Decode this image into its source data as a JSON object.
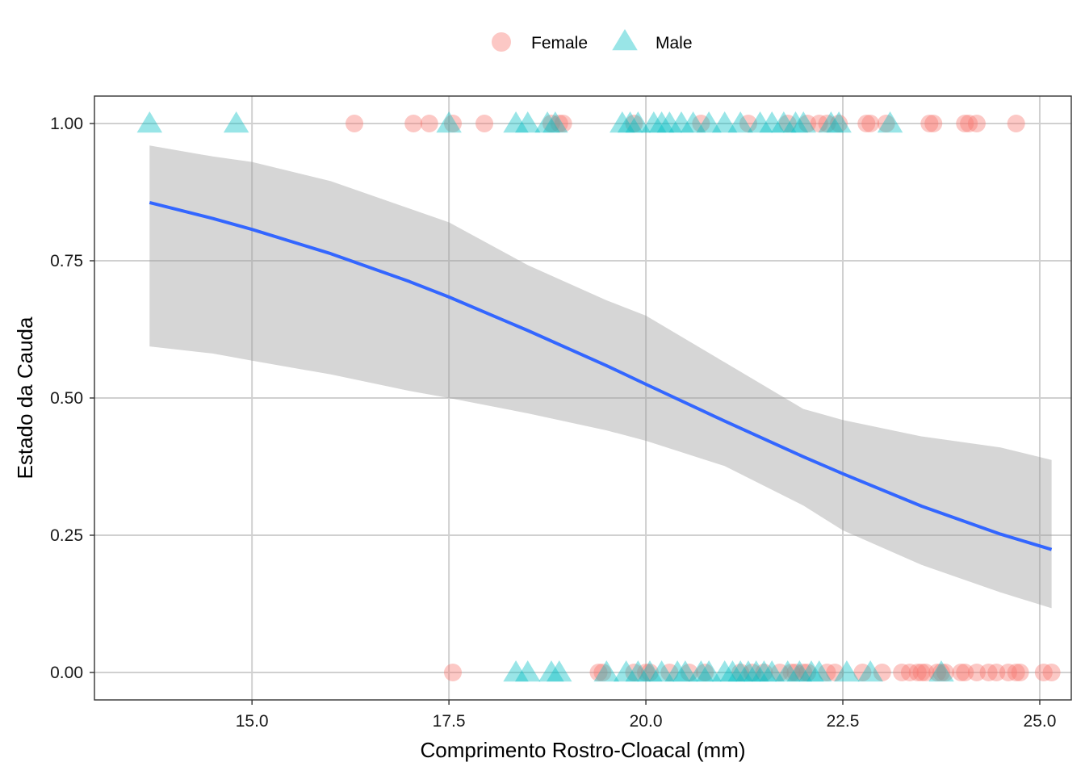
{
  "chart_data": {
    "type": "scatter",
    "xlabel": "Comprimento Rostro-Cloacal (mm)",
    "ylabel": "Estado da Cauda",
    "xlim": [
      13.0,
      25.4
    ],
    "ylim": [
      -0.05,
      1.05
    ],
    "x_ticks": [
      15.0,
      17.5,
      20.0,
      22.5,
      25.0
    ],
    "x_tick_labels": [
      "15.0",
      "17.5",
      "20.0",
      "22.5",
      "25.0"
    ],
    "y_ticks": [
      0.0,
      0.25,
      0.5,
      0.75,
      1.0
    ],
    "y_tick_labels": [
      "0.00",
      "0.25",
      "0.50",
      "0.75",
      "1.00"
    ],
    "grid": true,
    "legend_position": "top",
    "colors": {
      "female": "#F8766D",
      "male": "#00BFC4",
      "fit": "#3366FF",
      "ribbon": "#999999"
    },
    "series": [
      {
        "name": "Female",
        "marker": "circle",
        "color": "#F8766D",
        "points": [
          {
            "x": 16.3,
            "y": 1
          },
          {
            "x": 17.05,
            "y": 1
          },
          {
            "x": 17.25,
            "y": 1
          },
          {
            "x": 17.55,
            "y": 1
          },
          {
            "x": 17.95,
            "y": 1
          },
          {
            "x": 18.8,
            "y": 1
          },
          {
            "x": 18.9,
            "y": 1
          },
          {
            "x": 18.95,
            "y": 1
          },
          {
            "x": 19.85,
            "y": 1
          },
          {
            "x": 20.7,
            "y": 1
          },
          {
            "x": 21.3,
            "y": 1
          },
          {
            "x": 21.8,
            "y": 1
          },
          {
            "x": 22.05,
            "y": 1
          },
          {
            "x": 22.2,
            "y": 1
          },
          {
            "x": 22.3,
            "y": 1
          },
          {
            "x": 22.45,
            "y": 1
          },
          {
            "x": 22.8,
            "y": 1
          },
          {
            "x": 22.85,
            "y": 1
          },
          {
            "x": 23.05,
            "y": 1
          },
          {
            "x": 23.6,
            "y": 1
          },
          {
            "x": 23.65,
            "y": 1
          },
          {
            "x": 24.05,
            "y": 1
          },
          {
            "x": 24.1,
            "y": 1
          },
          {
            "x": 24.2,
            "y": 1
          },
          {
            "x": 24.7,
            "y": 1
          },
          {
            "x": 17.55,
            "y": 0
          },
          {
            "x": 19.4,
            "y": 0
          },
          {
            "x": 19.45,
            "y": 0
          },
          {
            "x": 19.85,
            "y": 0
          },
          {
            "x": 20.0,
            "y": 0
          },
          {
            "x": 20.05,
            "y": 0
          },
          {
            "x": 20.3,
            "y": 0
          },
          {
            "x": 20.55,
            "y": 0
          },
          {
            "x": 20.75,
            "y": 0
          },
          {
            "x": 21.2,
            "y": 0
          },
          {
            "x": 21.35,
            "y": 0
          },
          {
            "x": 21.5,
            "y": 0
          },
          {
            "x": 21.7,
            "y": 0
          },
          {
            "x": 21.85,
            "y": 0
          },
          {
            "x": 21.9,
            "y": 0
          },
          {
            "x": 22.0,
            "y": 0
          },
          {
            "x": 22.05,
            "y": 0
          },
          {
            "x": 22.3,
            "y": 0
          },
          {
            "x": 22.4,
            "y": 0
          },
          {
            "x": 22.75,
            "y": 0
          },
          {
            "x": 23.0,
            "y": 0
          },
          {
            "x": 23.25,
            "y": 0
          },
          {
            "x": 23.35,
            "y": 0
          },
          {
            "x": 23.45,
            "y": 0
          },
          {
            "x": 23.5,
            "y": 0
          },
          {
            "x": 23.55,
            "y": 0
          },
          {
            "x": 23.7,
            "y": 0
          },
          {
            "x": 23.75,
            "y": 0
          },
          {
            "x": 23.8,
            "y": 0
          },
          {
            "x": 24.0,
            "y": 0
          },
          {
            "x": 24.05,
            "y": 0
          },
          {
            "x": 24.2,
            "y": 0
          },
          {
            "x": 24.35,
            "y": 0
          },
          {
            "x": 24.45,
            "y": 0
          },
          {
            "x": 24.6,
            "y": 0
          },
          {
            "x": 24.7,
            "y": 0
          },
          {
            "x": 24.75,
            "y": 0
          },
          {
            "x": 25.05,
            "y": 0
          },
          {
            "x": 25.15,
            "y": 0
          }
        ]
      },
      {
        "name": "Male",
        "marker": "triangle",
        "color": "#00BFC4",
        "points": [
          {
            "x": 13.7,
            "y": 1
          },
          {
            "x": 14.8,
            "y": 1
          },
          {
            "x": 17.5,
            "y": 1
          },
          {
            "x": 18.35,
            "y": 1
          },
          {
            "x": 18.5,
            "y": 1
          },
          {
            "x": 18.75,
            "y": 1
          },
          {
            "x": 18.85,
            "y": 1
          },
          {
            "x": 19.7,
            "y": 1
          },
          {
            "x": 19.8,
            "y": 1
          },
          {
            "x": 19.9,
            "y": 1
          },
          {
            "x": 20.1,
            "y": 1
          },
          {
            "x": 20.2,
            "y": 1
          },
          {
            "x": 20.3,
            "y": 1
          },
          {
            "x": 20.45,
            "y": 1
          },
          {
            "x": 20.6,
            "y": 1
          },
          {
            "x": 20.8,
            "y": 1
          },
          {
            "x": 21.0,
            "y": 1
          },
          {
            "x": 21.2,
            "y": 1
          },
          {
            "x": 21.45,
            "y": 1
          },
          {
            "x": 21.6,
            "y": 1
          },
          {
            "x": 21.75,
            "y": 1
          },
          {
            "x": 21.9,
            "y": 1
          },
          {
            "x": 22.0,
            "y": 1
          },
          {
            "x": 22.35,
            "y": 1
          },
          {
            "x": 22.45,
            "y": 1
          },
          {
            "x": 23.1,
            "y": 1
          },
          {
            "x": 18.35,
            "y": 0
          },
          {
            "x": 18.5,
            "y": 0
          },
          {
            "x": 18.8,
            "y": 0
          },
          {
            "x": 18.9,
            "y": 0
          },
          {
            "x": 19.5,
            "y": 0
          },
          {
            "x": 19.75,
            "y": 0
          },
          {
            "x": 19.9,
            "y": 0
          },
          {
            "x": 20.05,
            "y": 0
          },
          {
            "x": 20.2,
            "y": 0
          },
          {
            "x": 20.4,
            "y": 0
          },
          {
            "x": 20.5,
            "y": 0
          },
          {
            "x": 20.7,
            "y": 0
          },
          {
            "x": 20.8,
            "y": 0
          },
          {
            "x": 21.0,
            "y": 0
          },
          {
            "x": 21.1,
            "y": 0
          },
          {
            "x": 21.2,
            "y": 0
          },
          {
            "x": 21.3,
            "y": 0
          },
          {
            "x": 21.4,
            "y": 0
          },
          {
            "x": 21.5,
            "y": 0
          },
          {
            "x": 21.6,
            "y": 0
          },
          {
            "x": 21.8,
            "y": 0
          },
          {
            "x": 21.95,
            "y": 0
          },
          {
            "x": 22.1,
            "y": 0
          },
          {
            "x": 22.2,
            "y": 0
          },
          {
            "x": 22.55,
            "y": 0
          },
          {
            "x": 22.85,
            "y": 0
          },
          {
            "x": 23.75,
            "y": 0
          }
        ]
      }
    ],
    "fit": {
      "method": "logistic regression",
      "x": [
        13.7,
        14.5,
        15.0,
        16.0,
        17.0,
        17.5,
        18.5,
        19.5,
        20.0,
        21.0,
        22.0,
        22.5,
        23.5,
        24.5,
        25.15
      ],
      "y": [
        0.856,
        0.827,
        0.807,
        0.763,
        0.712,
        0.684,
        0.623,
        0.559,
        0.525,
        0.458,
        0.393,
        0.362,
        0.303,
        0.252,
        0.224
      ],
      "lower": [
        0.594,
        0.581,
        0.568,
        0.543,
        0.513,
        0.5,
        0.472,
        0.441,
        0.422,
        0.376,
        0.304,
        0.259,
        0.196,
        0.146,
        0.117
      ],
      "upper": [
        0.96,
        0.94,
        0.93,
        0.895,
        0.845,
        0.82,
        0.742,
        0.678,
        0.65,
        0.565,
        0.48,
        0.46,
        0.43,
        0.41,
        0.387
      ]
    }
  }
}
